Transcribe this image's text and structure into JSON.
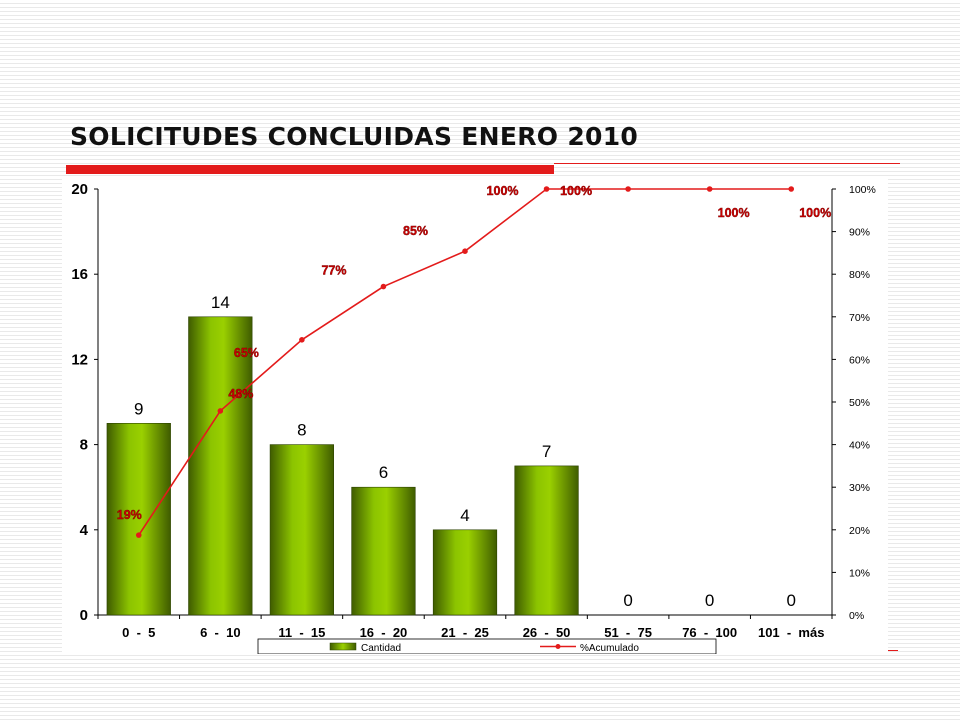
{
  "slide": {
    "title": "SOLICITUDES CONCLUIDAS ENERO 2010"
  },
  "colors": {
    "accent_red": "#e31b1b",
    "bar_green": "#7fb800",
    "bar_dark": "#3f5c00",
    "line_red": "#e31b1b"
  },
  "chart_data": {
    "type": "bar",
    "title": "",
    "xlabel": "",
    "ylabel": "",
    "categories": [
      "0  -  5",
      "6  -  10",
      "11  -  15",
      "16  -  20",
      "21  -  25",
      "26  -  50",
      "51  -  75",
      "76  -  100",
      "101  -  más"
    ],
    "series": [
      {
        "name": "Cantidad",
        "type": "bar",
        "axis": "left",
        "values": [
          9,
          14,
          8,
          6,
          4,
          7,
          0,
          0,
          0
        ],
        "labels": [
          "9",
          "14",
          "8",
          "6",
          "4",
          "7",
          "0",
          "0",
          "0"
        ]
      },
      {
        "name": "%Acumulado",
        "type": "line",
        "axis": "right",
        "values": [
          18.75,
          47.9,
          64.6,
          77.1,
          85.4,
          100,
          100,
          100,
          100
        ],
        "labels": [
          "19%",
          "48%",
          "65%",
          "77%",
          "85%",
          "100%",
          "100%",
          "100%",
          "100%"
        ]
      }
    ],
    "y_left": {
      "min": 0,
      "max": 20,
      "ticks": [
        "0",
        "4",
        "8",
        "12",
        "16",
        "20"
      ]
    },
    "y_right": {
      "min": 0,
      "max": 100,
      "ticks": [
        "0%",
        "10%",
        "20%",
        "30%",
        "40%",
        "50%",
        "60%",
        "70%",
        "80%",
        "90%",
        "100%"
      ]
    },
    "grid": false,
    "legend": "bottom"
  }
}
